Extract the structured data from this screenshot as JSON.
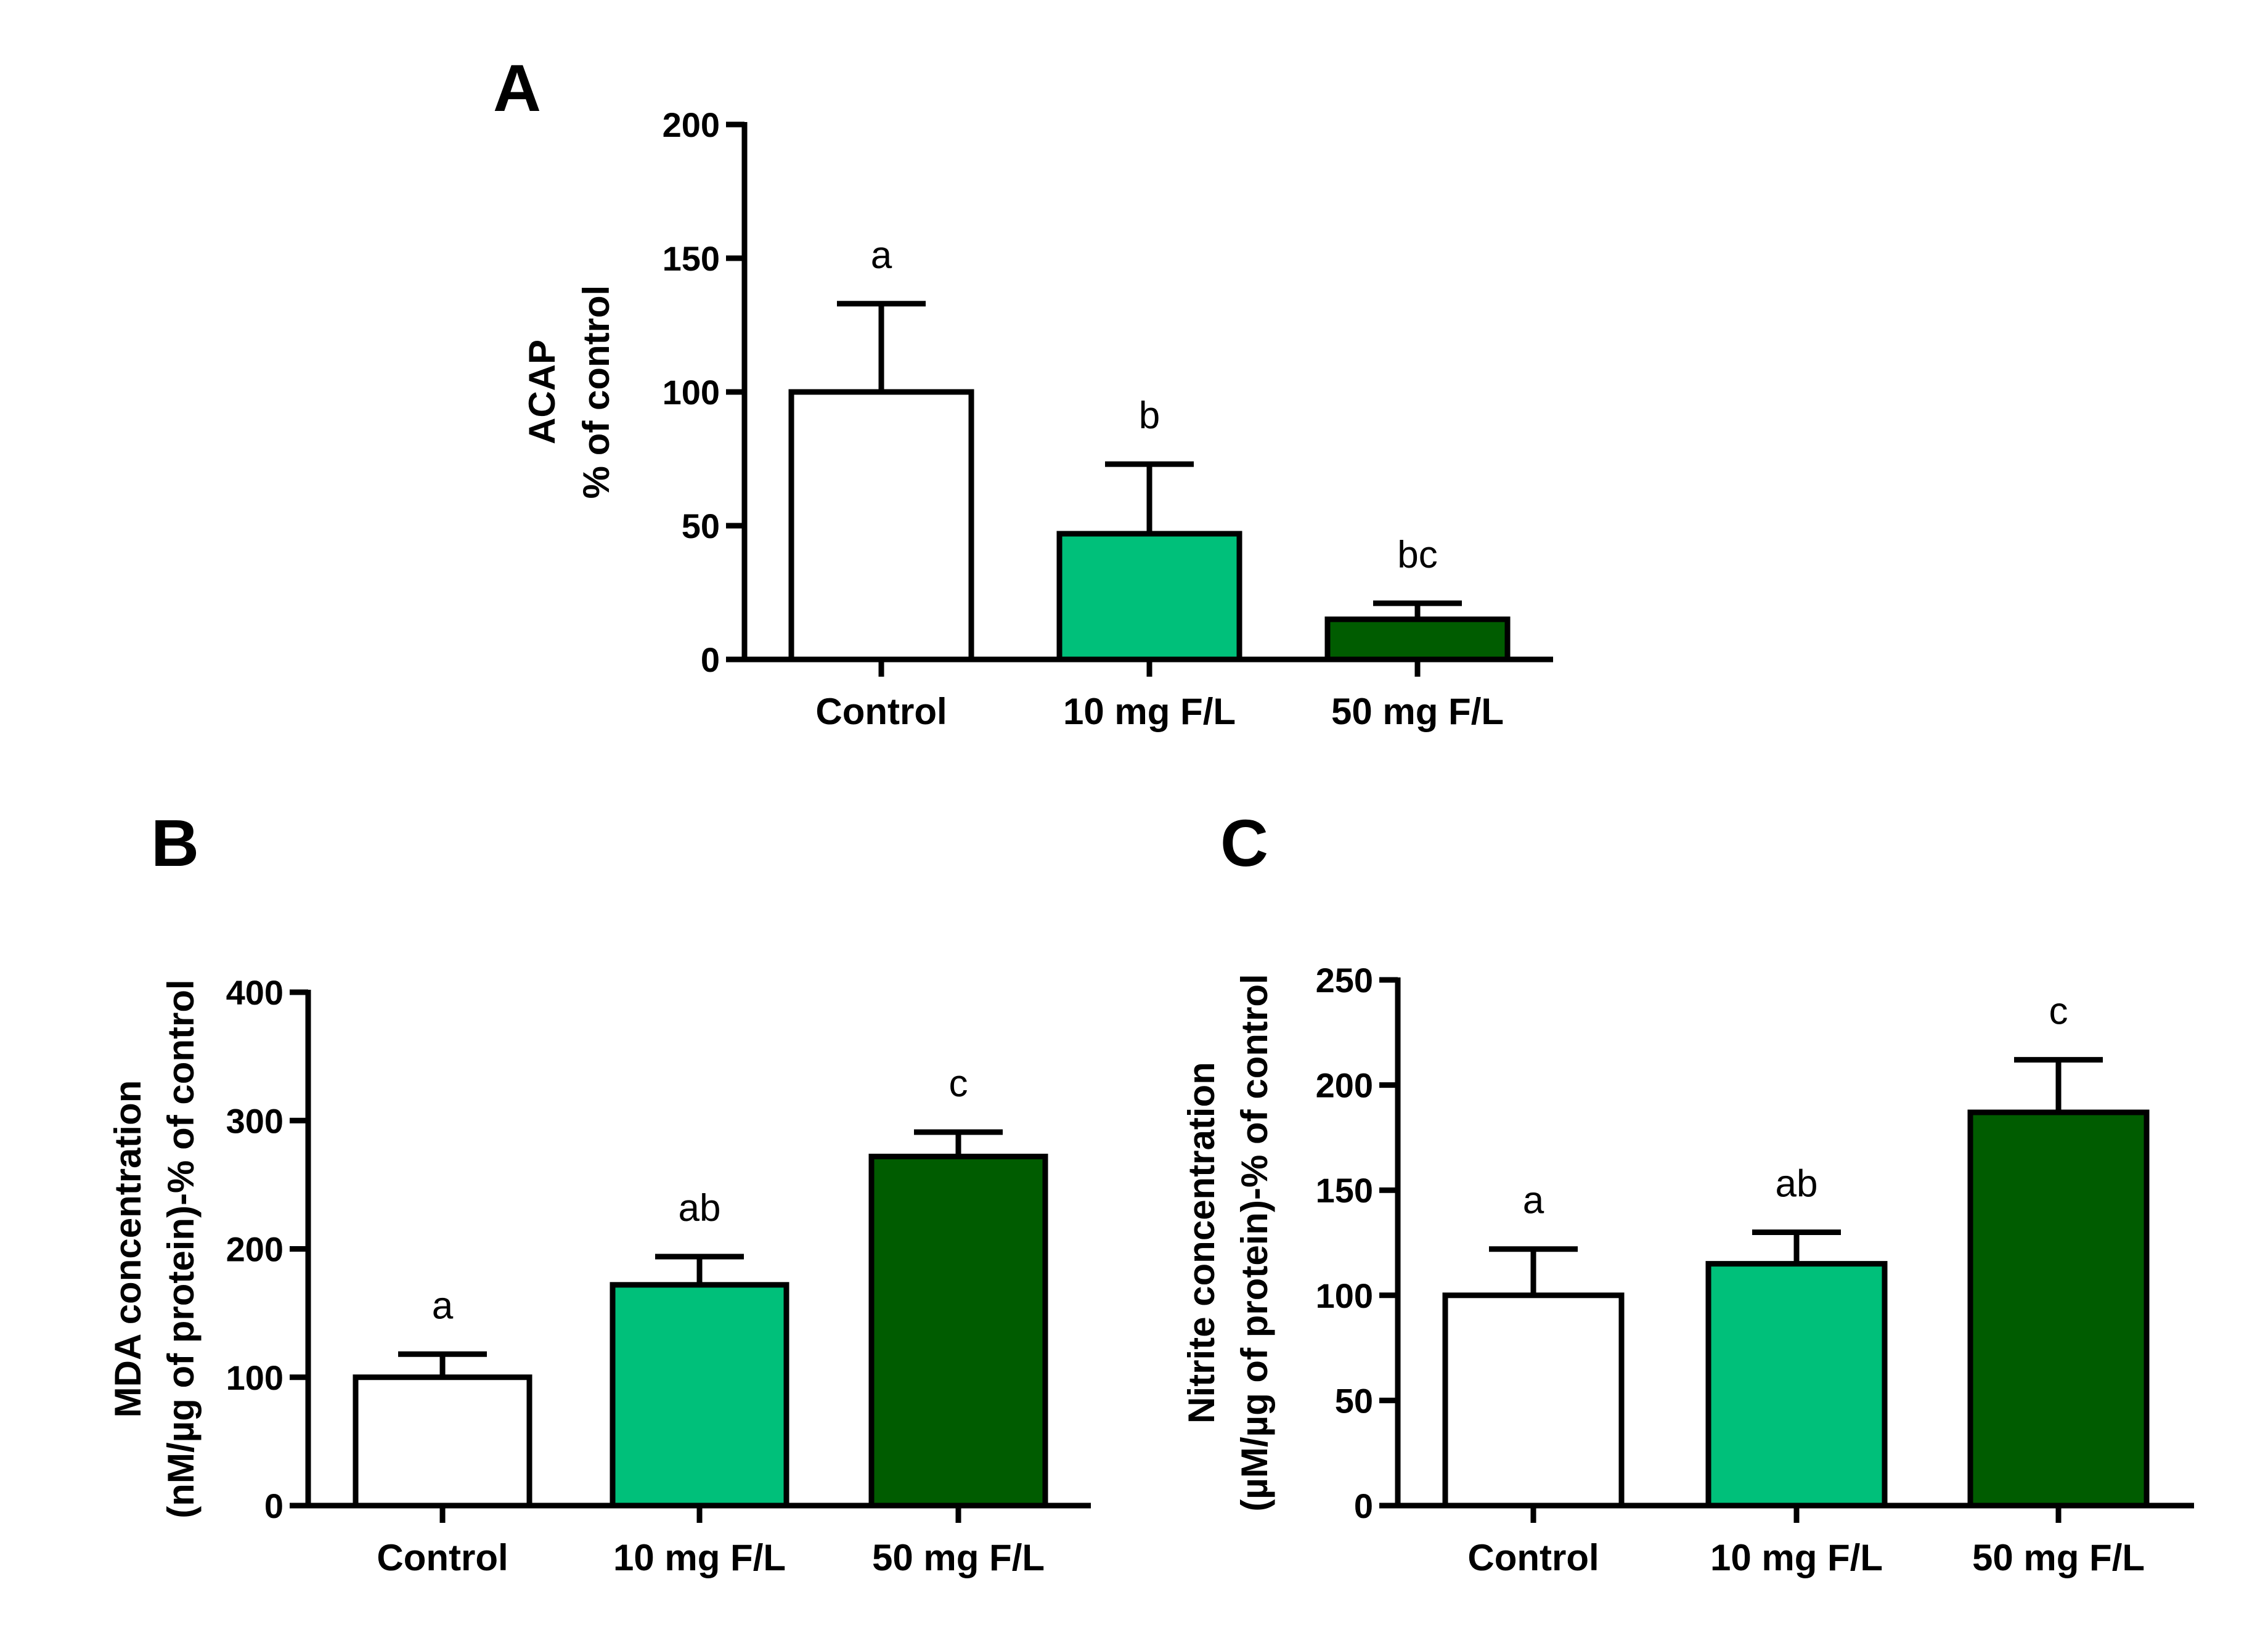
{
  "chart_data": [
    {
      "panel": "A",
      "type": "bar",
      "categories": [
        "Control",
        "10 mg F/L",
        "50 mg F/L"
      ],
      "values": [
        100,
        47,
        15
      ],
      "errors": [
        33,
        26,
        6
      ],
      "letters": [
        "a",
        "b",
        "bc"
      ],
      "ylabel_lines": [
        "ACAP",
        "% of control"
      ],
      "xlabel": "",
      "ylim": [
        0,
        200
      ],
      "yticks": [
        0,
        50,
        100,
        150,
        200
      ],
      "colors": [
        "#ffffff",
        "#00c07a",
        "#005c00"
      ]
    },
    {
      "panel": "B",
      "type": "bar",
      "categories": [
        "Control",
        "10 mg F/L",
        "50 mg F/L"
      ],
      "values": [
        100,
        172,
        272
      ],
      "errors": [
        18,
        22,
        19
      ],
      "letters": [
        "a",
        "ab",
        "c"
      ],
      "ylabel_lines": [
        "MDA concentration",
        "(nM/µg of protein)-% of control"
      ],
      "xlabel": "",
      "ylim": [
        0,
        400
      ],
      "yticks": [
        0,
        100,
        200,
        300,
        400
      ],
      "colors": [
        "#ffffff",
        "#00c07a",
        "#005c00"
      ]
    },
    {
      "panel": "C",
      "type": "bar",
      "categories": [
        "Control",
        "10 mg F/L",
        "50 mg F/L"
      ],
      "values": [
        100,
        115,
        187
      ],
      "errors": [
        22,
        15,
        25
      ],
      "letters": [
        "a",
        "ab",
        "c"
      ],
      "ylabel_lines": [
        "Nitrite concentration",
        "(µM/µg of protein)-% of control"
      ],
      "xlabel": "",
      "ylim": [
        0,
        250
      ],
      "yticks": [
        0,
        50,
        100,
        150,
        200,
        250
      ],
      "colors": [
        "#ffffff",
        "#00c07a",
        "#005c00"
      ]
    }
  ]
}
